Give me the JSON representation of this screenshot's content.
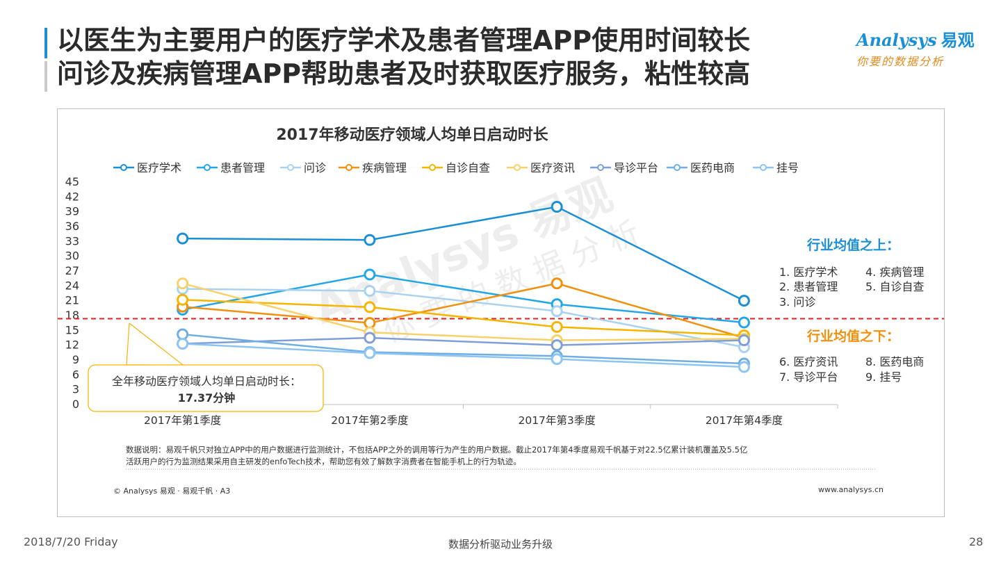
{
  "header": {
    "title_line1": "以医生为主要用户的医疗学术及患者管理APP使用时间较长",
    "title_line2": "问诊及疾病管理APP帮助患者及时获取医疗服务，粘性较高"
  },
  "logo": {
    "brand": "Analysys",
    "brand_cn": "易观",
    "tagline": "你要的数据分析"
  },
  "colors": {
    "accent": "#1a8fd6",
    "orange": "#e28a1f",
    "average_line": "#e02020"
  },
  "chart_data": {
    "type": "line",
    "title": "2017年移动医疗领域人均单日启动时长",
    "categories": [
      "2017年第1季度",
      "2017年第2季度",
      "2017年第3季度",
      "2017年第4季度"
    ],
    "ylim": [
      0,
      45
    ],
    "yticks": [
      0,
      3,
      6,
      9,
      12,
      15,
      18,
      21,
      24,
      27,
      30,
      33,
      36,
      39,
      42,
      45
    ],
    "average_value": 17.37,
    "grid": false,
    "legend_position": "top",
    "series": [
      {
        "name": "医疗学术",
        "color": "#1a8fd6",
        "values": [
          33.6,
          33.3,
          40.0,
          21.0
        ]
      },
      {
        "name": "患者管理",
        "color": "#22a6e8",
        "values": [
          19.2,
          26.3,
          20.3,
          16.6
        ]
      },
      {
        "name": "问诊",
        "color": "#a9d2f0",
        "values": [
          23.4,
          23.0,
          18.9,
          11.6
        ]
      },
      {
        "name": "疾病管理",
        "color": "#f0900c",
        "values": [
          19.8,
          16.5,
          24.5,
          13.5
        ]
      },
      {
        "name": "自诊自查",
        "color": "#f5b400",
        "values": [
          21.2,
          19.7,
          15.7,
          14.0
        ]
      },
      {
        "name": "医疗资讯",
        "color": "#f7d16a",
        "values": [
          24.5,
          14.6,
          13.0,
          13.3
        ]
      },
      {
        "name": "导诊平台",
        "color": "#7f9ed8",
        "values": [
          12.3,
          13.5,
          12.0,
          13.0
        ]
      },
      {
        "name": "医药电商",
        "color": "#6faee3",
        "values": [
          14.2,
          10.6,
          9.8,
          8.3
        ]
      },
      {
        "name": "挂号",
        "color": "#8cc4f3",
        "values": [
          12.3,
          10.4,
          9.2,
          7.6
        ]
      }
    ],
    "annotation": {
      "label": "全年移动医疗领域人均单日启动时长：",
      "value": "17.37分钟"
    },
    "above_panel": {
      "title": "行业均值之上：",
      "items": [
        "1.  医疗学术",
        "4.  疾病管理",
        "2.  患者管理",
        "5.  自诊自查",
        "3.  问诊"
      ]
    },
    "below_panel": {
      "title": "行业均值之下：",
      "items": [
        "6.  医疗资讯",
        "8.  医药电商",
        "7.  导诊平台",
        "9.  挂号"
      ]
    },
    "watermark": "Analysys 易观",
    "watermark_sub": "你要的数据分析"
  },
  "note": {
    "line1": "数据说明：易观千帆只对独立APP中的用户数据进行监测统计，不包括APP之外的调用等行为产生的用户数据。截止2017年第4季度易观千帆基于对22.5亿累计装机覆盖及5.5亿",
    "line2": "活跃用户的行为监测结果采用自主研发的enfoTech技术，帮助您有效了解数字消费者在智能手机上的行为轨迹。"
  },
  "copyright": "© Analysys 易观 · 易观千帆 · A3",
  "website": "www.analysys.cn",
  "footer": {
    "date": "2018/7/20 Friday",
    "center": "数据分析驱动业务升级",
    "page": "28"
  }
}
